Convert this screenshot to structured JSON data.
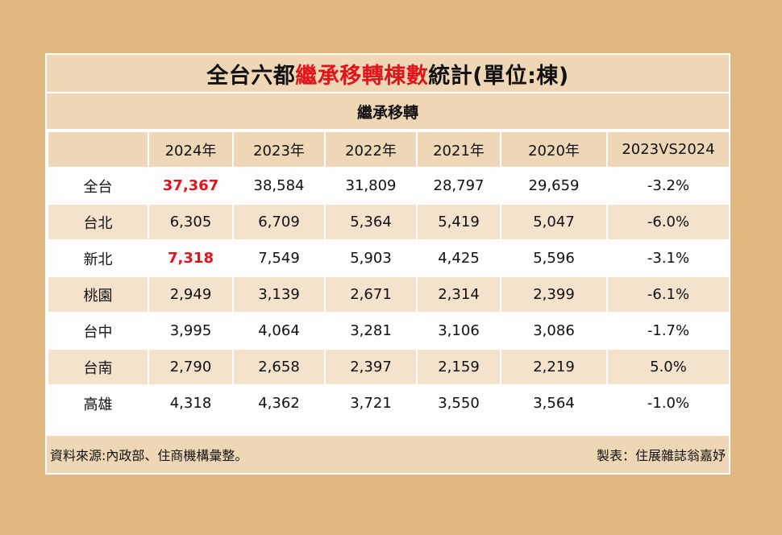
{
  "title": {
    "part1": "全台六都",
    "part2_highlight": "繼承移轉棟數",
    "part3": "統計(單位:棟)"
  },
  "subtitle": "繼承移轉",
  "table": {
    "headers": [
      "",
      "2024年",
      "2023年",
      "2022年",
      "2021年",
      "2020年",
      "2023VS2024"
    ],
    "rows": [
      {
        "region": "全台",
        "values": [
          "37,367",
          "38,584",
          "31,809",
          "28,797",
          "29,659",
          "-3.2%"
        ]
      },
      {
        "region": "台北",
        "values": [
          "6,305",
          "6,709",
          "5,364",
          "5,419",
          "5,047",
          "-6.0%"
        ]
      },
      {
        "region": "新北",
        "values": [
          "7,318",
          "7,549",
          "5,903",
          "4,425",
          "5,596",
          "-3.1%"
        ]
      },
      {
        "region": "桃園",
        "values": [
          "2,949",
          "3,139",
          "2,671",
          "2,314",
          "2,399",
          "-6.1%"
        ]
      },
      {
        "region": "台中",
        "values": [
          "3,995",
          "4,064",
          "3,281",
          "3,106",
          "3,086",
          "-1.7%"
        ]
      },
      {
        "region": "台南",
        "values": [
          "2,790",
          "2,658",
          "2,397",
          "2,159",
          "2,219",
          "5.0%"
        ]
      },
      {
        "region": "高雄",
        "values": [
          "4,318",
          "4,362",
          "3,721",
          "3,550",
          "3,564",
          "-1.0%"
        ]
      }
    ]
  },
  "footer": {
    "source": "資料來源:內政部、住商機構彙整。",
    "credit": "製表：住展雜誌翁嘉妤"
  },
  "colors": {
    "background": "#dfb77f",
    "header_fill": "#efd7b6",
    "stripe_fill": "#f4e2cc",
    "highlight_red": "#e0141a"
  }
}
